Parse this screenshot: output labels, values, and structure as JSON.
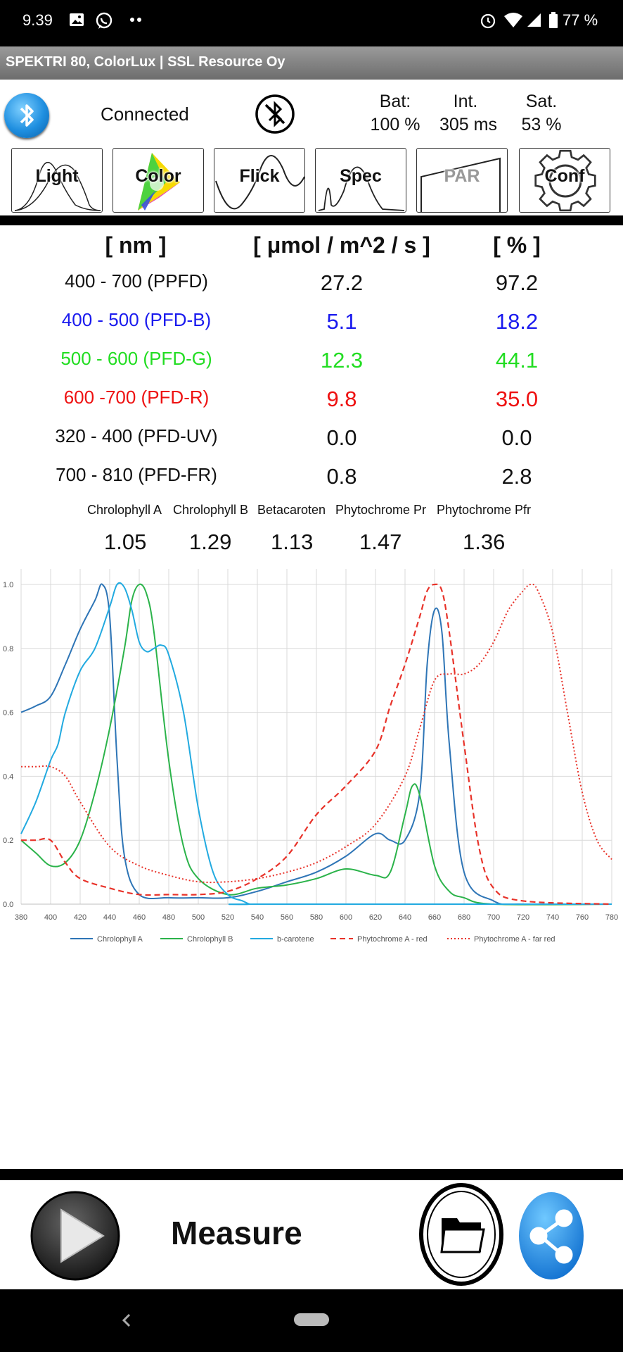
{
  "status_bar": {
    "time": "9.39",
    "battery": "77 %"
  },
  "app_title": "SPEKTRI 80, ColorLux  |  SSL Resource Oy",
  "header": {
    "connection": "Connected",
    "bat_label": "Bat:",
    "bat_value": "100 %",
    "int_label": "Int.",
    "int_value": "305 ms",
    "sat_label": "Sat.",
    "sat_value": "53 %"
  },
  "tabs": [
    "Light",
    "Color",
    "Flick",
    "Spec",
    "PAR",
    "Conf"
  ],
  "table": {
    "headers": [
      "[ nm ]",
      "[ μmol / m^2 / s ]",
      "[ % ]"
    ],
    "rows": [
      {
        "range": "400 - 700 (PPFD)",
        "value": "27.2",
        "percent": "97.2",
        "color": "#111111"
      },
      {
        "range": "400 - 500 (PFD-B)",
        "value": "5.1",
        "percent": "18.2",
        "color": "#1a1aee"
      },
      {
        "range": "500 - 600 (PFD-G)",
        "value": "12.3",
        "percent": "44.1",
        "color": "#22dd22"
      },
      {
        "range": "600 -700 (PFD-R)",
        "value": "9.8",
        "percent": "35.0",
        "color": "#ee1111"
      },
      {
        "range": "320 - 400 (PFD-UV)",
        "value": "0.0",
        "percent": "0.0",
        "color": "#111111"
      },
      {
        "range": "700 - 810 (PFD-FR)",
        "value": "0.8",
        "percent": "2.8",
        "color": "#111111"
      }
    ]
  },
  "pigments": [
    {
      "name": "Chrolophyll A",
      "value": "1.05"
    },
    {
      "name": "Chrolophyll B",
      "value": "1.29"
    },
    {
      "name": "Betacaroten",
      "value": "1.13"
    },
    {
      "name": "Phytochrome Pr",
      "value": "1.47"
    },
    {
      "name": "Phytochrome Pfr",
      "value": "1.36"
    }
  ],
  "chart_data": {
    "type": "line",
    "x_ticks": [
      380,
      400,
      420,
      440,
      460,
      480,
      500,
      520,
      540,
      560,
      580,
      600,
      620,
      640,
      660,
      680,
      700,
      720,
      740,
      760,
      780
    ],
    "y_ticks": [
      0.0,
      0.2,
      0.4,
      0.6,
      0.8,
      1.0
    ],
    "xlim": [
      380,
      780
    ],
    "ylim": [
      0,
      1.0
    ],
    "grid": true,
    "series": [
      {
        "name": "Chrolophyll A",
        "color": "#2e75b6",
        "dash": "solid",
        "x": [
          380,
          390,
          400,
          410,
          420,
          430,
          435,
          440,
          445,
          450,
          460,
          480,
          500,
          520,
          540,
          560,
          580,
          600,
          620,
          630,
          640,
          650,
          655,
          660,
          665,
          670,
          680,
          700,
          720,
          780
        ],
        "y": [
          0.6,
          0.62,
          0.65,
          0.75,
          0.86,
          0.95,
          1.0,
          0.9,
          0.45,
          0.15,
          0.03,
          0.02,
          0.02,
          0.02,
          0.04,
          0.07,
          0.1,
          0.15,
          0.22,
          0.2,
          0.2,
          0.35,
          0.75,
          0.92,
          0.85,
          0.5,
          0.1,
          0.01,
          0.0,
          0.0
        ]
      },
      {
        "name": "Chrolophyll B",
        "color": "#2bb34a",
        "dash": "solid",
        "x": [
          380,
          390,
          400,
          410,
          420,
          430,
          440,
          450,
          455,
          460,
          465,
          470,
          480,
          490,
          500,
          520,
          540,
          560,
          580,
          600,
          620,
          630,
          640,
          645,
          650,
          660,
          670,
          680,
          700,
          780
        ],
        "y": [
          0.2,
          0.16,
          0.12,
          0.13,
          0.2,
          0.35,
          0.55,
          0.8,
          0.95,
          1.0,
          0.97,
          0.85,
          0.45,
          0.18,
          0.08,
          0.03,
          0.05,
          0.06,
          0.08,
          0.11,
          0.09,
          0.1,
          0.28,
          0.37,
          0.34,
          0.12,
          0.04,
          0.02,
          0.0,
          0.0
        ]
      },
      {
        "name": "b-carotene",
        "color": "#22aae0",
        "dash": "solid",
        "x": [
          380,
          390,
          400,
          405,
          410,
          420,
          430,
          440,
          445,
          450,
          455,
          460,
          465,
          470,
          475,
          480,
          490,
          500,
          510,
          520,
          530,
          535,
          540,
          780
        ],
        "y": [
          0.22,
          0.32,
          0.45,
          0.5,
          0.6,
          0.73,
          0.8,
          0.93,
          1.0,
          0.99,
          0.92,
          0.82,
          0.79,
          0.8,
          0.81,
          0.78,
          0.6,
          0.3,
          0.1,
          0.03,
          0.01,
          0.0,
          0.0,
          0.0
        ]
      },
      {
        "name": "Phytochrome A - red",
        "color": "#e8332a",
        "dash": "dashed",
        "x": [
          380,
          390,
          400,
          410,
          420,
          440,
          460,
          480,
          500,
          520,
          540,
          560,
          580,
          600,
          620,
          630,
          640,
          650,
          655,
          660,
          665,
          670,
          680,
          690,
          700,
          720,
          780
        ],
        "y": [
          0.2,
          0.2,
          0.2,
          0.13,
          0.08,
          0.05,
          0.03,
          0.03,
          0.03,
          0.04,
          0.08,
          0.15,
          0.28,
          0.37,
          0.48,
          0.62,
          0.75,
          0.9,
          0.98,
          1.0,
          0.98,
          0.85,
          0.5,
          0.18,
          0.05,
          0.01,
          0.0
        ]
      },
      {
        "name": "Phytochrome A - far red",
        "color": "#e8332a",
        "dash": "dotted",
        "x": [
          380,
          390,
          400,
          410,
          420,
          440,
          460,
          480,
          500,
          520,
          540,
          560,
          580,
          600,
          620,
          640,
          650,
          660,
          670,
          680,
          690,
          700,
          710,
          720,
          725,
          730,
          740,
          750,
          760,
          770,
          780
        ],
        "y": [
          0.43,
          0.43,
          0.43,
          0.4,
          0.32,
          0.18,
          0.12,
          0.09,
          0.07,
          0.07,
          0.08,
          0.1,
          0.13,
          0.18,
          0.25,
          0.4,
          0.55,
          0.7,
          0.72,
          0.72,
          0.75,
          0.82,
          0.92,
          0.98,
          1.0,
          0.98,
          0.85,
          0.6,
          0.35,
          0.2,
          0.14
        ]
      }
    ]
  },
  "bottom": {
    "measure_label": "Measure"
  }
}
